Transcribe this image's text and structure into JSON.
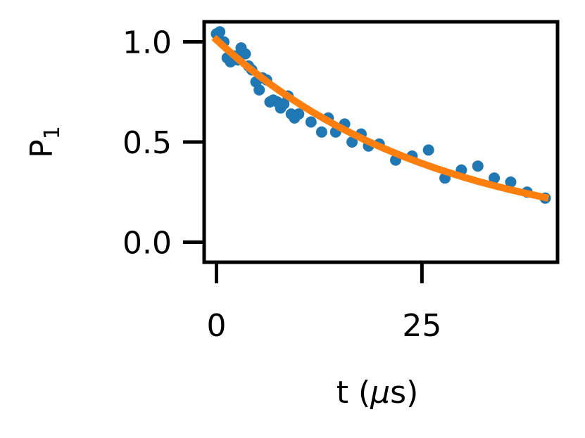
{
  "chart_data": {
    "type": "scatter",
    "xlabel": {
      "pre": "t (",
      "mu": "μ",
      "post": "s)"
    },
    "ylabel": {
      "main": "P",
      "sub": "1"
    },
    "xlim": [
      -1.5,
      41.5
    ],
    "ylim": [
      -0.1,
      1.1
    ],
    "x_ticks": [
      0,
      25
    ],
    "x_tick_labels": [
      "0",
      "25"
    ],
    "y_ticks": [
      0.0,
      0.5,
      1.0
    ],
    "y_tick_labels": [
      "0.0",
      "0.5",
      "1.0"
    ],
    "grid": false,
    "colors": {
      "data": "#1f77b4",
      "fit": "#ff7f0e",
      "axes": "#000000"
    },
    "series": [
      {
        "kind": "points",
        "x": [
          0.0,
          0.4,
          0.9,
          1.3,
          1.7,
          2.2,
          2.6,
          3.0,
          3.5,
          3.9,
          4.3,
          4.8,
          5.2,
          5.6,
          6.1,
          6.5,
          6.9,
          7.4,
          7.8,
          8.2,
          8.7,
          9.1,
          9.5,
          10.0,
          11.5,
          12.8,
          13.6,
          14.5,
          15.6,
          16.5,
          17.6,
          18.5,
          19.8,
          21.8,
          23.8,
          25.8,
          27.8,
          29.8,
          31.8,
          33.8,
          35.8,
          37.8,
          40.0
        ],
        "y": [
          1.04,
          1.05,
          1.0,
          0.92,
          0.9,
          0.93,
          0.91,
          0.97,
          0.94,
          0.88,
          0.86,
          0.8,
          0.76,
          0.82,
          0.81,
          0.7,
          0.71,
          0.7,
          0.67,
          0.69,
          0.73,
          0.64,
          0.62,
          0.64,
          0.6,
          0.55,
          0.62,
          0.55,
          0.59,
          0.5,
          0.54,
          0.48,
          0.49,
          0.41,
          0.43,
          0.46,
          0.32,
          0.36,
          0.38,
          0.32,
          0.3,
          0.25,
          0.22
        ]
      },
      {
        "kind": "fit",
        "model": "exponential_decay",
        "amplitude": 1.01,
        "tau": 26.5
      }
    ]
  }
}
